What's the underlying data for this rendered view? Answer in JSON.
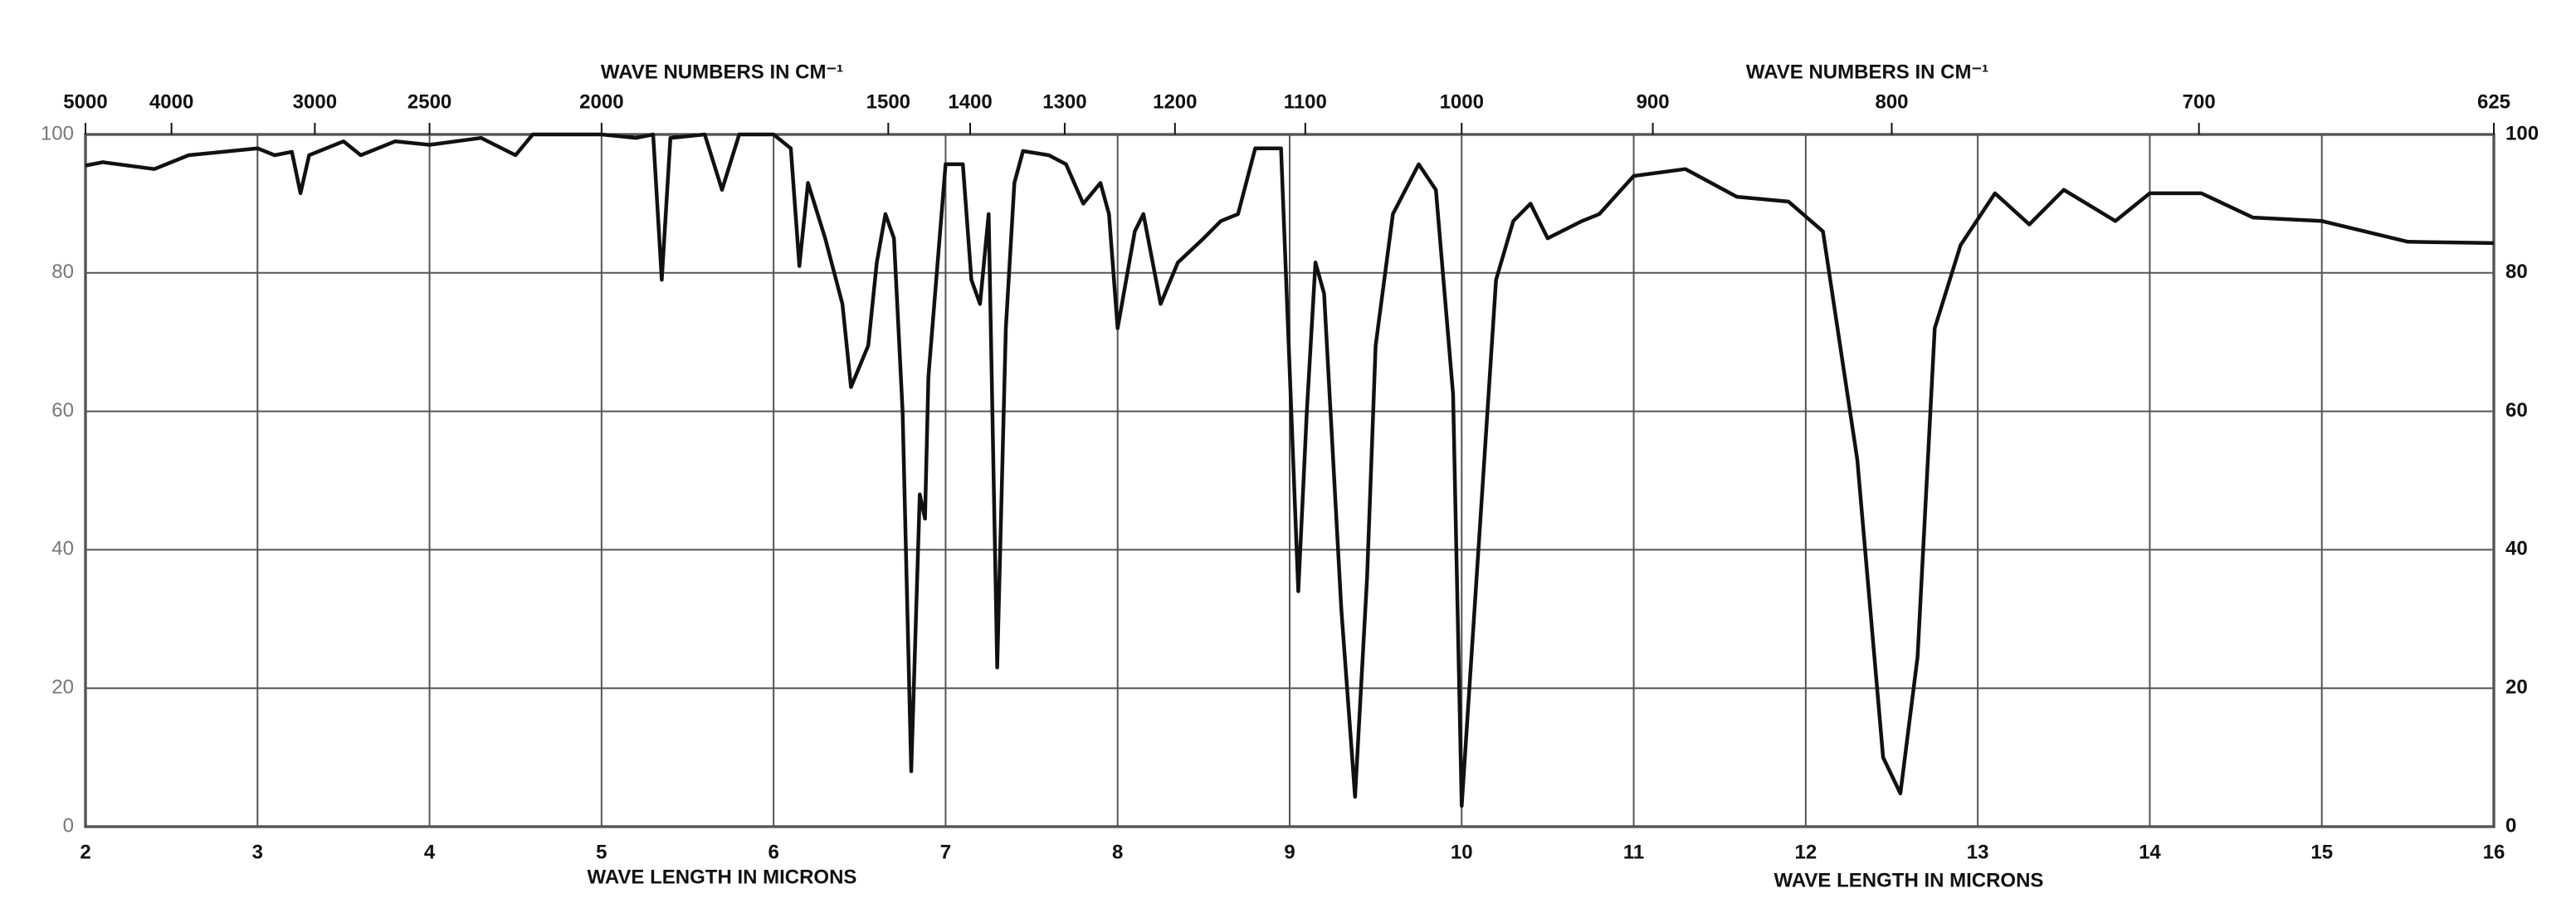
{
  "chart_data": {
    "type": "line",
    "top_labels": [
      "WAVE NUMBERS IN CM⁻¹",
      "WAVE NUMBERS IN CM⁻¹"
    ],
    "x_labels": [
      "WAVE LENGTH IN MICRONS",
      "WAVE LENGTH IN MICRONS"
    ],
    "x": [
      2.0,
      2.1,
      2.4,
      2.6,
      3.0,
      3.1,
      3.2,
      3.25,
      3.3,
      3.5,
      3.6,
      3.8,
      4.0,
      4.3,
      4.5,
      4.6,
      5.0,
      5.2,
      5.3,
      5.35,
      5.4,
      5.6,
      5.7,
      5.8,
      6.0,
      6.1,
      6.15,
      6.2,
      6.3,
      6.4,
      6.45,
      6.55,
      6.6,
      6.65,
      6.7,
      6.75,
      6.8,
      6.85,
      6.88,
      6.9,
      7.0,
      7.1,
      7.15,
      7.2,
      7.25,
      7.3,
      7.35,
      7.4,
      7.45,
      7.6,
      7.7,
      7.8,
      7.9,
      7.95,
      8.0,
      8.1,
      8.15,
      8.25,
      8.35,
      8.5,
      8.6,
      8.7,
      8.8,
      8.95,
      9.05,
      9.1,
      9.15,
      9.2,
      9.3,
      9.38,
      9.45,
      9.5,
      9.6,
      9.75,
      9.85,
      9.95,
      10.0,
      10.1,
      10.2,
      10.3,
      10.4,
      10.5,
      10.7,
      10.8,
      11.0,
      11.3,
      11.6,
      11.9,
      12.1,
      12.3,
      12.45,
      12.55,
      12.65,
      12.75,
      12.9,
      13.1,
      13.3,
      13.5,
      13.8,
      14.0,
      14.3,
      14.6,
      15.0,
      15.5,
      16.0
    ],
    "series": [
      {
        "color": "#111111",
        "values": [
          95.5,
          96,
          95,
          97,
          98,
          97,
          97.5,
          91.5,
          97,
          99,
          97,
          99,
          98.5,
          99.5,
          97,
          100,
          100,
          99.5,
          100,
          79,
          99.5,
          100,
          92,
          100,
          100,
          98,
          81,
          93,
          85,
          75.5,
          63.5,
          69.5,
          81.5,
          88.5,
          85,
          60,
          8,
          48,
          44.5,
          65,
          95.7,
          95.7,
          79,
          75.5,
          88.5,
          23,
          72,
          93,
          97.6,
          97,
          95.7,
          90,
          93,
          88.5,
          72,
          86,
          88.5,
          75.5,
          81.5,
          85,
          87.5,
          88.5,
          98,
          98,
          34,
          60,
          81.5,
          77,
          31.5,
          4.3,
          36,
          69.5,
          88.5,
          95.7,
          92,
          62.5,
          3,
          41,
          79,
          87.5,
          90,
          85,
          87.5,
          88.5,
          94,
          95,
          91,
          90.3,
          86,
          53,
          10,
          4.8,
          24.5,
          72,
          84,
          91.5,
          87,
          92,
          87.5,
          91.5,
          91.5,
          88,
          87.5,
          84.5,
          84.3
        ]
      }
    ],
    "xlim": [
      2,
      16
    ],
    "xticks": [
      2,
      3,
      4,
      5,
      6,
      7,
      8,
      9,
      10,
      11,
      12,
      13,
      14,
      15,
      16
    ],
    "ylim": [
      0,
      100
    ],
    "yticks": [
      0,
      20,
      40,
      60,
      80,
      100
    ],
    "x2ticks": [
      5000,
      4000,
      3000,
      2500,
      2000,
      1500,
      1400,
      1300,
      1200,
      1100,
      1000,
      900,
      800,
      700,
      625
    ],
    "grid": true
  }
}
